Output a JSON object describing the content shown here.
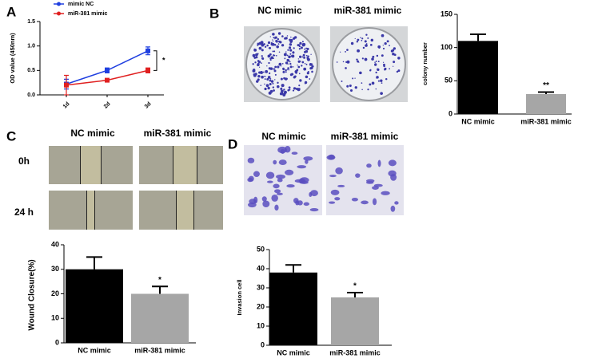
{
  "chart_data": [
    {
      "type": "line",
      "panel": "A",
      "ylabel": "OD value (450nm)",
      "categories": [
        "1d",
        "2d",
        "3d"
      ],
      "series": [
        {
          "name": "mimic NC",
          "color": "#1f3fe0",
          "values": [
            0.22,
            0.5,
            0.9
          ],
          "errors": [
            0.1,
            0.05,
            0.08
          ]
        },
        {
          "name": "miR-381 mimic",
          "color": "#e02020",
          "values": [
            0.2,
            0.3,
            0.5
          ],
          "errors": [
            0.2,
            0.03,
            0.05
          ]
        }
      ],
      "ylim": [
        0,
        1.5
      ],
      "yticks": [
        {
          "value": 0,
          "label": "0.0"
        },
        {
          "value": 0.5,
          "label": "0.5"
        },
        {
          "value": 1,
          "label": "1.0"
        },
        {
          "value": 1.5,
          "label": "1.5"
        }
      ],
      "annotation": "*"
    },
    {
      "type": "bar",
      "panel": "B",
      "image_headers": [
        "NC mimic",
        "miR-381 mimic"
      ],
      "ylabel": "colony number",
      "categories": [
        "NC mimic",
        "miR-381 mimic"
      ],
      "values": [
        110,
        30
      ],
      "errors": [
        10,
        3
      ],
      "colors": [
        "#000000",
        "#a6a6a6"
      ],
      "ylim": [
        0,
        150
      ],
      "yticks": [
        0,
        50,
        100,
        150
      ],
      "annotation": "**"
    },
    {
      "type": "bar",
      "panel": "C",
      "image_headers": [
        "NC mimic",
        "miR-381 mimic"
      ],
      "row_labels": [
        "0h",
        "24 h"
      ],
      "ylabel": "Wound Closure(%)",
      "categories": [
        "NC mimic",
        "miR-381 mimic"
      ],
      "values": [
        30,
        20
      ],
      "errors": [
        5,
        3
      ],
      "colors": [
        "#000000",
        "#a6a6a6"
      ],
      "ylim": [
        0,
        40
      ],
      "yticks": [
        0,
        10,
        20,
        30,
        40
      ],
      "annotation": "*"
    },
    {
      "type": "bar",
      "panel": "D",
      "image_headers": [
        "NC mimic",
        "miR-381 mimic"
      ],
      "ylabel": "Invasion cell",
      "categories": [
        "NC mimic",
        "miR-381 mimic"
      ],
      "values": [
        38,
        25
      ],
      "errors": [
        4,
        2.5
      ],
      "colors": [
        "#000000",
        "#a6a6a6"
      ],
      "ylim": [
        0,
        50
      ],
      "yticks": [
        0,
        10,
        20,
        30,
        40,
        50
      ],
      "annotation": "*"
    }
  ]
}
